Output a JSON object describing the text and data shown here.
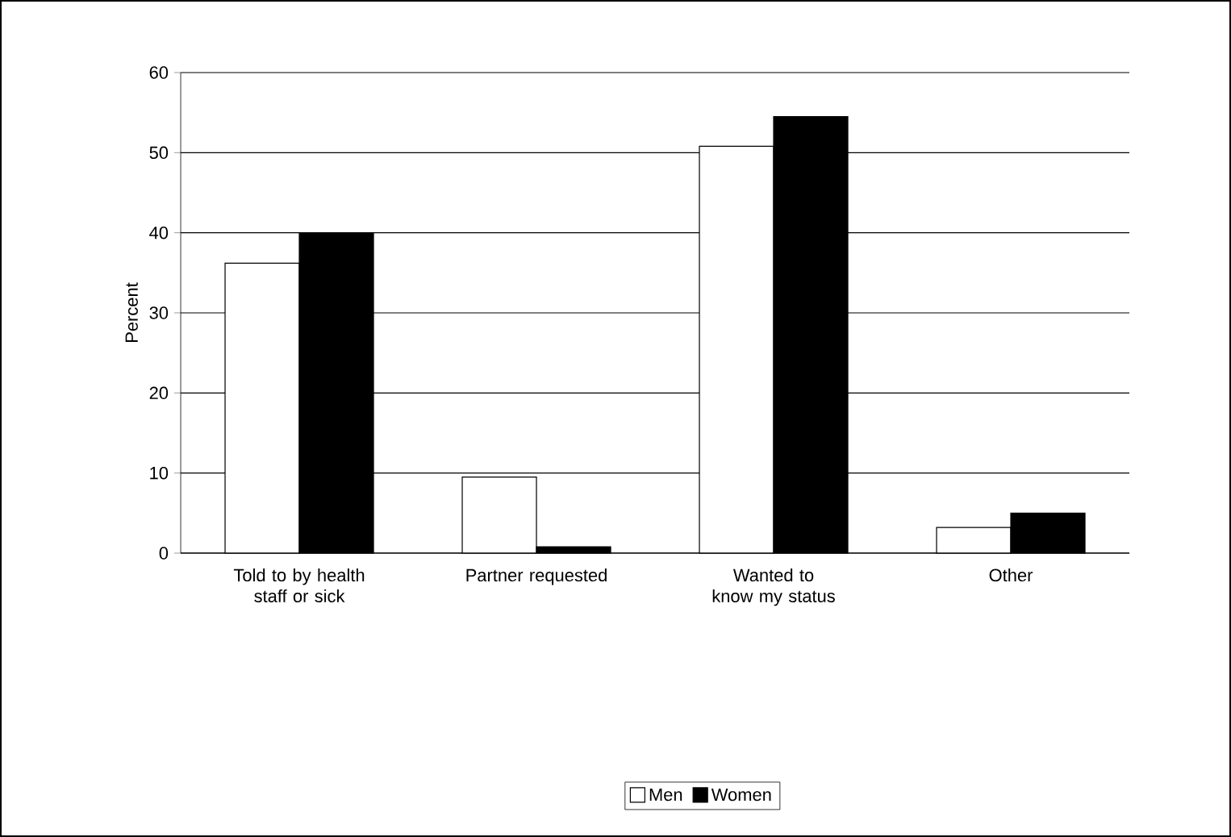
{
  "chart_data": {
    "type": "bar",
    "ylabel": "Percent",
    "categories": [
      "Told to by health staff or sick",
      "Partner requested",
      "Wanted to know my status",
      "Other"
    ],
    "series": [
      {
        "name": "Men",
        "color": "#ffffff",
        "values": [
          36.2,
          9.5,
          50.8,
          3.2
        ]
      },
      {
        "name": "Women",
        "color": "#000000",
        "values": [
          40,
          0.8,
          54.5,
          5
        ]
      }
    ],
    "ylim": [
      0,
      60
    ],
    "yticks": [
      0,
      10,
      20,
      30,
      40,
      50,
      60
    ],
    "grid": "y",
    "legend": "bottom"
  }
}
